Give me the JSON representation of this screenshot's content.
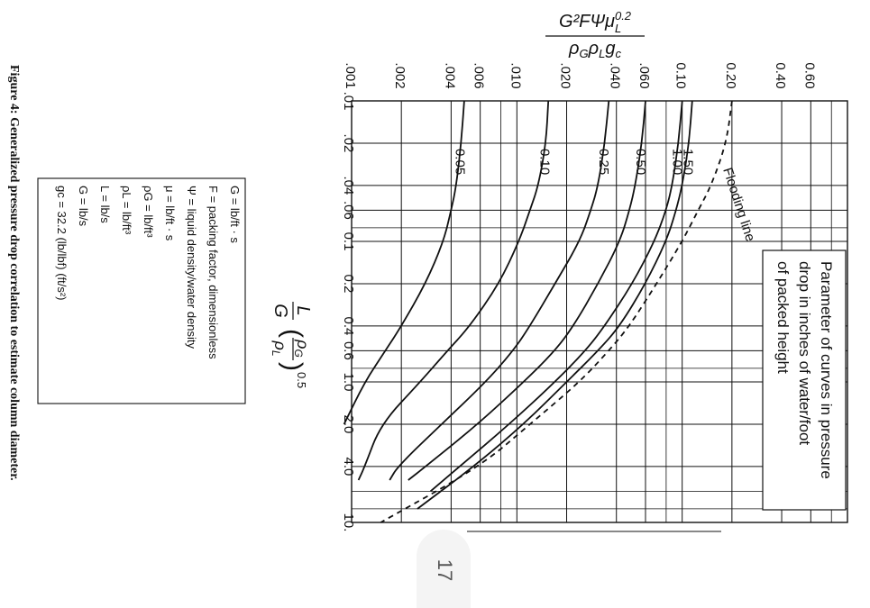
{
  "caption": "Figure 4: Generalized pressure drop correlation to estimate column diameter.",
  "page_number": "17",
  "definitions": [
    "G = lb/ft · s",
    "F = packing factor, dimensionless",
    "Ψ = liquid density/water density",
    "μ = lb/ft · s",
    "ρG = lb/ft³",
    "ρL = lb/ft³",
    "L = lb/s",
    "G = lb/s",
    "gc = 32.2 (lb/lbf) (ft/s²)"
  ],
  "chart_data": {
    "type": "line",
    "xscale": "log",
    "yscale": "log",
    "xlim": [
      0.01,
      10
    ],
    "ylim": [
      0.001,
      1.0
    ],
    "grid": true,
    "xlabel": "L/G (ρG/ρL)^0.5",
    "ylabel": "G²FΨμL^0.2 / ρGρLgc",
    "x_ticks": [
      {
        "v": 0.01,
        "label": ".01"
      },
      {
        "v": 0.02,
        "label": ".02"
      },
      {
        "v": 0.04,
        "label": ".04"
      },
      {
        "v": 0.06,
        "label": ".06"
      },
      {
        "v": 0.1,
        "label": "0.1"
      },
      {
        "v": 0.2,
        "label": "0.2"
      },
      {
        "v": 0.4,
        "label": "0.4"
      },
      {
        "v": 0.6,
        "label": "0.6"
      },
      {
        "v": 1.0,
        "label": "1.0"
      },
      {
        "v": 2.0,
        "label": "2.0"
      },
      {
        "v": 4.0,
        "label": "4.0"
      },
      {
        "v": 10,
        "label": "10."
      }
    ],
    "y_ticks": [
      {
        "v": 0.001,
        "label": ".001"
      },
      {
        "v": 0.002,
        "label": ".002"
      },
      {
        "v": 0.004,
        "label": ".004"
      },
      {
        "v": 0.006,
        "label": ".006"
      },
      {
        "v": 0.01,
        "label": ".010"
      },
      {
        "v": 0.02,
        "label": ".020"
      },
      {
        "v": 0.04,
        "label": ".040"
      },
      {
        "v": 0.06,
        "label": ".060"
      },
      {
        "v": 0.1,
        "label": "0.10"
      },
      {
        "v": 0.2,
        "label": "0.20"
      },
      {
        "v": 0.4,
        "label": "0.40"
      },
      {
        "v": 0.6,
        "label": "0.60"
      }
    ],
    "x_minor": [
      0.08,
      0.8,
      6,
      8
    ],
    "y_minor": [
      0.008,
      0.08,
      0.8,
      1.0
    ],
    "legend": "Parameter of curves in pressure drop in inches of water/foot of packed height",
    "legend_lines": [
      "Parameter of curves in pressure",
      "drop in inches of water/foot",
      "of packed height"
    ],
    "flooding_label": "Flooding line",
    "series": [
      {
        "name": "0.05",
        "label": "0.05",
        "x": [
          0.01,
          0.02,
          0.04,
          0.06,
          0.1,
          0.2,
          0.4,
          0.6,
          1.0,
          2.0
        ],
        "y": [
          0.0048,
          0.0046,
          0.0043,
          0.004,
          0.0036,
          0.0028,
          0.002,
          0.0016,
          0.0012,
          0.0009
        ]
      },
      {
        "name": "0.10",
        "label": "0.10",
        "x": [
          0.01,
          0.02,
          0.04,
          0.06,
          0.1,
          0.2,
          0.4,
          0.6,
          1.0,
          2.0,
          4.0,
          5.0
        ],
        "y": [
          0.0155,
          0.015,
          0.0135,
          0.012,
          0.0103,
          0.0078,
          0.0052,
          0.0038,
          0.0026,
          0.0015,
          0.0012,
          0.0011
        ]
      },
      {
        "name": "0.25",
        "label": "0.25",
        "x": [
          0.01,
          0.02,
          0.04,
          0.06,
          0.1,
          0.2,
          0.4,
          0.6,
          1.0,
          2.0,
          4.0,
          5.0
        ],
        "y": [
          0.036,
          0.034,
          0.031,
          0.028,
          0.024,
          0.017,
          0.012,
          0.0095,
          0.0065,
          0.0035,
          0.0019,
          0.0017
        ]
      },
      {
        "name": "0.50",
        "label": "0.50",
        "x": [
          0.01,
          0.02,
          0.04,
          0.06,
          0.1,
          0.2,
          0.4,
          0.6,
          1.0,
          2.0,
          4.0,
          5.0
        ],
        "y": [
          0.06,
          0.057,
          0.052,
          0.048,
          0.042,
          0.031,
          0.022,
          0.017,
          0.011,
          0.0058,
          0.0028,
          0.0022
        ]
      },
      {
        "name": "1.00",
        "label": "1.00",
        "x": [
          0.01,
          0.02,
          0.04,
          0.06,
          0.1,
          0.2,
          0.4,
          0.6,
          1.0,
          2.0,
          4.0,
          6.0
        ],
        "y": [
          0.1,
          0.095,
          0.087,
          0.08,
          0.068,
          0.05,
          0.034,
          0.026,
          0.017,
          0.009,
          0.0045,
          0.003
        ]
      },
      {
        "name": "1.50",
        "label": "1.50",
        "x": [
          0.01,
          0.02,
          0.04,
          0.06,
          0.1,
          0.2,
          0.4,
          0.6,
          1.0,
          2.0,
          4.0,
          8.0
        ],
        "y": [
          0.115,
          0.11,
          0.1,
          0.092,
          0.08,
          0.06,
          0.042,
          0.031,
          0.02,
          0.011,
          0.0055,
          0.0025
        ]
      },
      {
        "name": "Flooding line",
        "label": "",
        "dashed": true,
        "x": [
          0.01,
          0.02,
          0.04,
          0.06,
          0.1,
          0.2,
          0.4,
          0.6,
          1.0,
          2.0,
          4.0,
          10.0
        ],
        "y": [
          0.2,
          0.185,
          0.15,
          0.125,
          0.1,
          0.07,
          0.048,
          0.036,
          0.024,
          0.012,
          0.006,
          0.0015
        ]
      }
    ]
  }
}
